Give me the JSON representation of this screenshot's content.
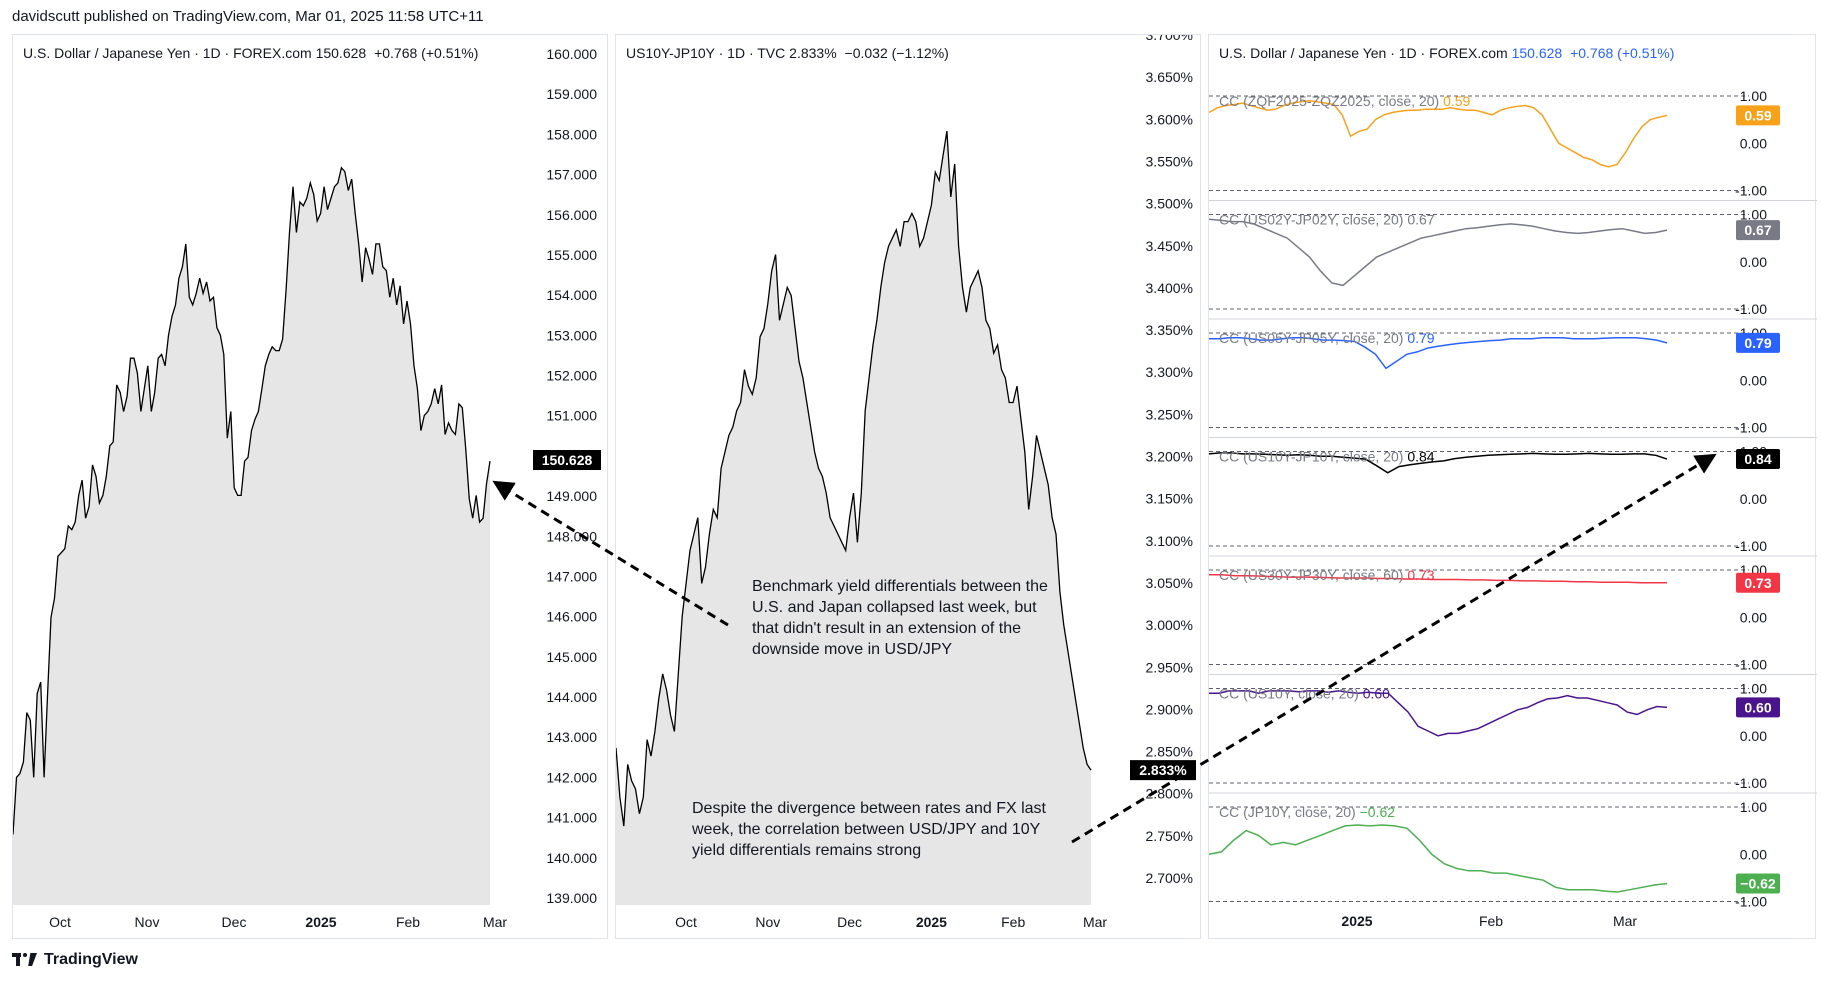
{
  "header": {
    "published": "davidscutt published on TradingView.com, Mar 01, 2025 11:58 UTC+11"
  },
  "footer": {
    "brand": "TradingView"
  },
  "annotations": {
    "text1": "Benchmark yield differentials between the U.S. and Japan collapsed last week, but that didn't result in an extension of the downside move in USD/JPY",
    "text2": "Despite the divergence between rates and FX last week, the correlation between USD/JPY and 10Y yield differentials remains strong"
  },
  "chart_data": [
    {
      "type": "area",
      "title": "U.S. Dollar / Japanese Yen · 1D · FOREX.com",
      "last_price": "150.628",
      "change": "+0.768 (+0.51%)",
      "x_ticks": [
        "Oct",
        "Nov",
        "Dec",
        "2025",
        "Feb",
        "Mar"
      ],
      "bold_ticks": [
        "2025"
      ],
      "y_ticks": [
        "160.000",
        "159.000",
        "158.000",
        "157.000",
        "156.000",
        "155.000",
        "154.000",
        "153.000",
        "152.000",
        "151.000",
        "150.000",
        "149.000",
        "148.000",
        "147.000",
        "146.000",
        "145.000",
        "144.000",
        "143.000",
        "142.000",
        "141.000",
        "140.000",
        "139.000"
      ],
      "ylim": [
        138.95,
        160.05
      ],
      "last_label": "150.628",
      "values": [
        140.8,
        142.3,
        142.4,
        142.7,
        144,
        143.8,
        142.3,
        144.5,
        144.8,
        142.3,
        144.5,
        146.5,
        147,
        148.1,
        148.2,
        148.3,
        148.9,
        148.8,
        149,
        149.7,
        150.1,
        149.1,
        149.4,
        150.5,
        150.2,
        149.5,
        149.7,
        150.2,
        151,
        151.1,
        152.6,
        152.4,
        151.9,
        152.3,
        153.3,
        153.3,
        152.9,
        151.9,
        152.5,
        153.1,
        151.9,
        152.4,
        153.3,
        153.4,
        153.1,
        153.9,
        154.4,
        154.7,
        155.4,
        155.7,
        156.3,
        154.9,
        154.7,
        155,
        155.4,
        155,
        155.3,
        154.8,
        154.9,
        154.1,
        153.9,
        153.4,
        151.2,
        151.9,
        149.9,
        149.7,
        149.7,
        150.6,
        150.7,
        151.4,
        151.7,
        151.9,
        152.5,
        153.1,
        153.4,
        153.6,
        153.5,
        153.5,
        153.8,
        155.1,
        156.6,
        157.8,
        156.6,
        157.4,
        157.3,
        157.5,
        157.9,
        157.6,
        156.9,
        157.1,
        157.8,
        157.2,
        157.5,
        157.8,
        157.9,
        158.3,
        158.2,
        157.7,
        158,
        157.1,
        156.3,
        155.3,
        156.2,
        155.9,
        155.5,
        156.3,
        156.3,
        155.7,
        155.6,
        154.9,
        155.4,
        154.7,
        155.2,
        154.2,
        154.8,
        154.2,
        153.1,
        152.5,
        151.4,
        151.8,
        151.9,
        152.1,
        152.5,
        152.1,
        152.6,
        151.3,
        151.6,
        151.4,
        151.3,
        152.1,
        152,
        150.9,
        149.6,
        149.1,
        149.7,
        149,
        149.1,
        150,
        150.6
      ]
    },
    {
      "type": "area",
      "title": "US10Y-JP10Y · 1D · TVC",
      "last_price": "2.833%",
      "change": "−0.032 (−1.12%)",
      "x_ticks": [
        "Oct",
        "Nov",
        "Dec",
        "2025",
        "Feb",
        "Mar"
      ],
      "bold_ticks": [
        "2025"
      ],
      "y_ticks": [
        "3.700%",
        "3.650%",
        "3.600%",
        "3.550%",
        "3.500%",
        "3.450%",
        "3.400%",
        "3.350%",
        "3.300%",
        "3.250%",
        "3.200%",
        "3.150%",
        "3.100%",
        "3.050%",
        "3.000%",
        "2.950%",
        "2.900%",
        "2.850%",
        "2.800%",
        "2.750%",
        "2.700%"
      ],
      "ylim": [
        2.669,
        3.705
      ],
      "last_label": "2.833%",
      "values": [
        2.86,
        2.8,
        2.765,
        2.84,
        2.82,
        2.81,
        2.78,
        2.8,
        2.87,
        2.85,
        2.88,
        2.92,
        2.95,
        2.93,
        2.9,
        2.88,
        2.95,
        3.02,
        3.06,
        3.1,
        3.12,
        3.14,
        3.06,
        3.08,
        3.12,
        3.15,
        3.14,
        3.2,
        3.22,
        3.24,
        3.25,
        3.27,
        3.28,
        3.32,
        3.3,
        3.29,
        3.31,
        3.36,
        3.37,
        3.4,
        3.44,
        3.46,
        3.38,
        3.4,
        3.42,
        3.41,
        3.37,
        3.33,
        3.31,
        3.28,
        3.25,
        3.22,
        3.2,
        3.19,
        3.17,
        3.14,
        3.13,
        3.12,
        3.11,
        3.1,
        3.14,
        3.17,
        3.11,
        3.17,
        3.27,
        3.31,
        3.35,
        3.38,
        3.42,
        3.45,
        3.47,
        3.48,
        3.49,
        3.47,
        3.5,
        3.5,
        3.51,
        3.5,
        3.47,
        3.48,
        3.5,
        3.52,
        3.56,
        3.55,
        3.58,
        3.61,
        3.53,
        3.57,
        3.47,
        3.42,
        3.39,
        3.42,
        3.43,
        3.44,
        3.42,
        3.38,
        3.37,
        3.34,
        3.35,
        3.32,
        3.31,
        3.28,
        3.28,
        3.3,
        3.26,
        3.22,
        3.15,
        3.19,
        3.24,
        3.22,
        3.2,
        3.18,
        3.14,
        3.12,
        3.05,
        3.01,
        2.98,
        2.95,
        2.92,
        2.89,
        2.86,
        2.84,
        2.833
      ]
    },
    {
      "type": "line",
      "title": "U.S. Dollar / Japanese Yen · 1D · FOREX.com",
      "last_price": "150.628",
      "change": "+0.768 (+0.51%)",
      "x_ticks": [
        "2025",
        "Feb",
        "Mar"
      ],
      "bold_ticks": [
        "2025"
      ],
      "y_ticks": [
        "1.00",
        "0.00",
        "-1.00"
      ],
      "ylim": [
        -1,
        1
      ],
      "series": [
        {
          "name": "CC (ZQF2025-ZQZ2025, close, 20)",
          "label": "0.59",
          "color": "#f7a21b",
          "values": [
            0.65,
            0.75,
            0.8,
            0.82,
            0.85,
            0.8,
            0.75,
            0.7,
            0.72,
            0.8,
            0.85,
            0.88,
            0.9,
            0.88,
            0.85,
            0.82,
            0.6,
            0.15,
            0.25,
            0.3,
            0.5,
            0.6,
            0.65,
            0.68,
            0.7,
            0.7,
            0.72,
            0.72,
            0.72,
            0.75,
            0.72,
            0.7,
            0.7,
            0.65,
            0.6,
            0.7,
            0.75,
            0.78,
            0.8,
            0.75,
            0.6,
            0.3,
            0,
            -0.1,
            -0.2,
            -0.3,
            -0.35,
            -0.45,
            -0.5,
            -0.45,
            -0.2,
            0.1,
            0.35,
            0.5,
            0.55,
            0.59
          ]
        },
        {
          "name": "CC (US02Y-JP02Y, close, 20)",
          "label": "0.67",
          "color": "#787b86",
          "values": [
            0.9,
            0.88,
            0.85,
            0.85,
            0.8,
            0.7,
            0.6,
            0.5,
            0.3,
            0.1,
            -0.2,
            -0.45,
            -0.5,
            -0.3,
            -0.1,
            0.1,
            0.2,
            0.3,
            0.4,
            0.5,
            0.55,
            0.6,
            0.65,
            0.7,
            0.72,
            0.75,
            0.78,
            0.8,
            0.78,
            0.75,
            0.7,
            0.65,
            0.62,
            0.6,
            0.62,
            0.65,
            0.68,
            0.7,
            0.65,
            0.6,
            0.62,
            0.67
          ]
        },
        {
          "name": "CC (US05Y-JP05Y, close, 20)",
          "label": "0.79",
          "color": "#2962ff",
          "values": [
            0.88,
            0.88,
            0.9,
            0.9,
            0.88,
            0.85,
            0.85,
            0.88,
            0.9,
            0.9,
            0.88,
            0.85,
            0.85,
            0.84,
            0.82,
            0.7,
            0.55,
            0.25,
            0.4,
            0.55,
            0.6,
            0.68,
            0.72,
            0.75,
            0.78,
            0.8,
            0.82,
            0.84,
            0.85,
            0.88,
            0.88,
            0.88,
            0.9,
            0.9,
            0.9,
            0.88,
            0.88,
            0.88,
            0.89,
            0.9,
            0.9,
            0.9,
            0.88,
            0.85,
            0.79
          ]
        },
        {
          "name": "CC (US10Y-JP10Y, close, 20)",
          "label": "0.84",
          "color": "#000000",
          "values": [
            0.95,
            0.97,
            0.97,
            0.95,
            0.95,
            0.94,
            0.93,
            0.92,
            0.93,
            0.92,
            0.9,
            0.9,
            0.88,
            0.86,
            0.84,
            0.7,
            0.55,
            0.68,
            0.72,
            0.75,
            0.78,
            0.8,
            0.85,
            0.88,
            0.9,
            0.92,
            0.93,
            0.94,
            0.95,
            0.96,
            0.95,
            0.94,
            0.94,
            0.95,
            0.96,
            0.95,
            0.94,
            0.94,
            0.95,
            0.95,
            0.92,
            0.84
          ]
        },
        {
          "name": "CC (US30Y-JP30Y, close, 60)",
          "label": "0.73",
          "color": "#f23645",
          "values": [
            0.9,
            0.9,
            0.88,
            0.88,
            0.87,
            0.86,
            0.85,
            0.85,
            0.85,
            0.84,
            0.83,
            0.83,
            0.83,
            0.82,
            0.82,
            0.81,
            0.81,
            0.8,
            0.8,
            0.8,
            0.79,
            0.79,
            0.78,
            0.78,
            0.77,
            0.77,
            0.76,
            0.76,
            0.75,
            0.75,
            0.74,
            0.74,
            0.74,
            0.73,
            0.73,
            0.73
          ]
        },
        {
          "name": "CC (US10Y, close, 20)",
          "label": "0.60",
          "color": "#4a148c",
          "values": [
            0.9,
            0.9,
            0.95,
            0.95,
            0.95,
            0.9,
            0.95,
            0.95,
            0.95,
            0.93,
            0.95,
            0.95,
            0.92,
            0.95,
            0.92,
            0.9,
            0.92,
            0.9,
            0.9,
            0.7,
            0.5,
            0.2,
            0.1,
            0.0,
            0.05,
            0.05,
            0.1,
            0.15,
            0.25,
            0.35,
            0.45,
            0.55,
            0.6,
            0.7,
            0.78,
            0.8,
            0.85,
            0.8,
            0.8,
            0.75,
            0.7,
            0.65,
            0.5,
            0.45,
            0.55,
            0.62,
            0.6
          ]
        },
        {
          "name": "CC (JP10Y, close, 20)",
          "label": "−0.62",
          "color": "#4caf50",
          "values": [
            0.0,
            0.05,
            0.3,
            0.5,
            0.4,
            0.2,
            0.25,
            0.2,
            0.3,
            0.4,
            0.5,
            0.6,
            0.62,
            0.6,
            0.62,
            0.6,
            0.55,
            0.3,
            0,
            -0.2,
            -0.3,
            -0.35,
            -0.35,
            -0.4,
            -0.4,
            -0.45,
            -0.5,
            -0.55,
            -0.7,
            -0.75,
            -0.75,
            -0.75,
            -0.78,
            -0.8,
            -0.75,
            -0.7,
            -0.65,
            -0.62
          ]
        }
      ]
    }
  ]
}
